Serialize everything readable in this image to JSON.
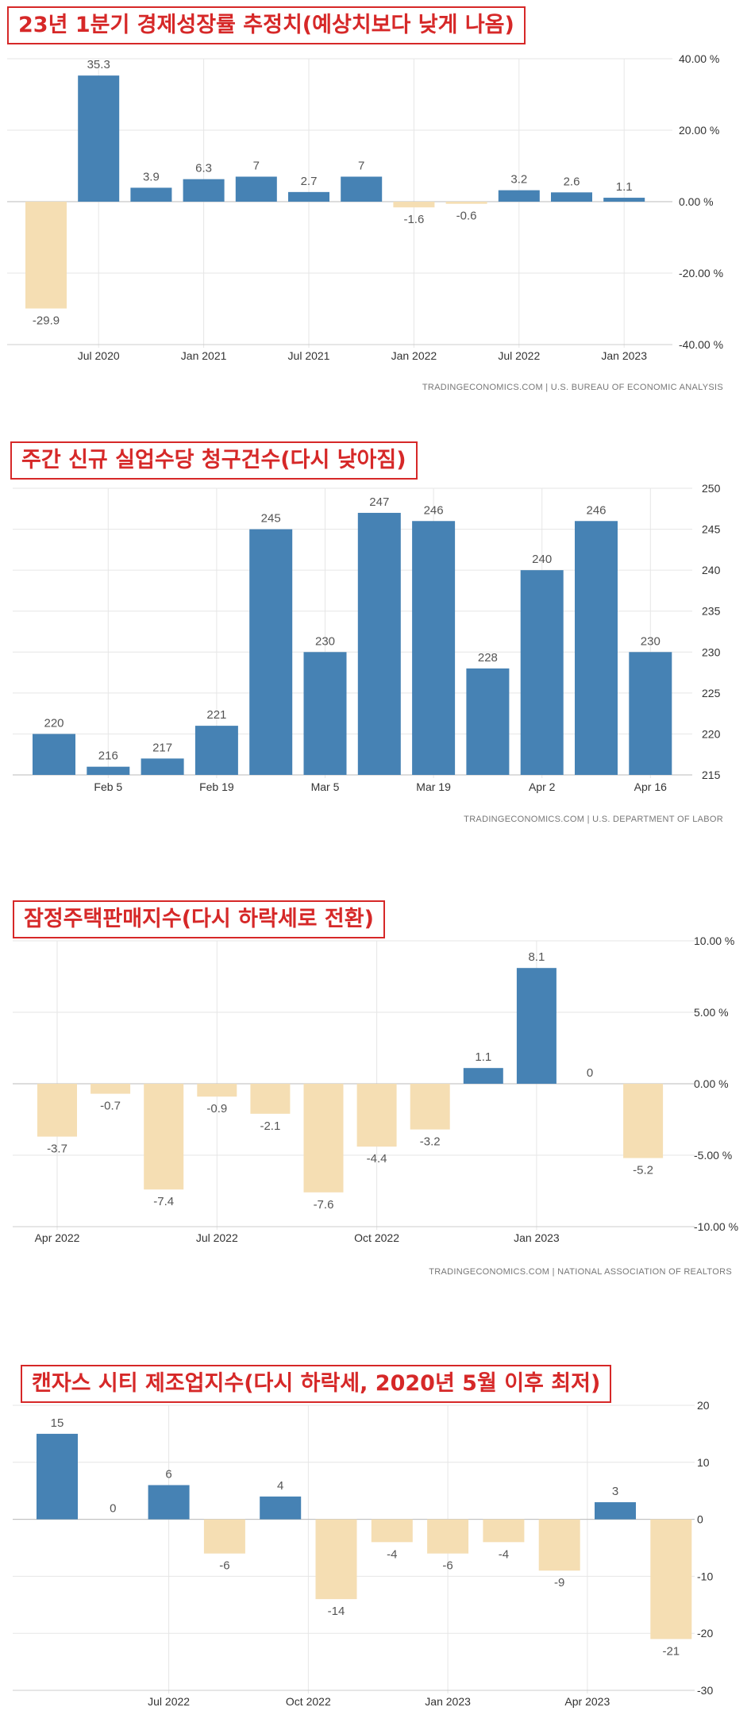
{
  "chart_data": [
    {
      "type": "bar",
      "title": "23년 1분기 경제성장률 추정치(예상치보다 낮게 나옴)",
      "x": [
        "2020 Q2",
        "2020 Q3",
        "2020 Q4",
        "2021 Q1",
        "2021 Q2",
        "2021 Q3",
        "2021 Q4",
        "2022 Q1",
        "2022 Q2",
        "2022 Q3",
        "2022 Q4",
        "2023 Q1"
      ],
      "values": [
        -29.9,
        35.3,
        3.9,
        6.3,
        7,
        2.7,
        7,
        -1.6,
        -0.6,
        3.2,
        2.6,
        1.1
      ],
      "value_labels": [
        "-29.9",
        "35.3",
        "3.9",
        "6.3",
        "7",
        "2.7",
        "7",
        "-1.6",
        "-0.6",
        "3.2",
        "2.6",
        "1.1"
      ],
      "xtick_labels": [
        "Jul 2020",
        "Jan 2021",
        "Jul 2021",
        "Jan 2022",
        "Jul 2022",
        "Jan 2023"
      ],
      "ytick_labels": [
        "40.00 %",
        "20.00 %",
        "0.00 %",
        "-20.00 %",
        "-40.00 %"
      ],
      "ylim": [
        -40,
        40
      ],
      "source": "TRADINGECONOMICS.COM  |  U.S. BUREAU OF ECONOMIC ANALYSIS",
      "colors": {
        "positive": "#4682b4",
        "negative": "#f5deb3"
      }
    },
    {
      "type": "bar",
      "title": "주간 신규 실업수당 청구건수(다시 낮아짐)",
      "x": [
        "Jan 29",
        "Feb 5",
        "Feb 12",
        "Feb 19",
        "Feb 26",
        "Mar 5",
        "Mar 12",
        "Mar 19",
        "Mar 26",
        "Apr 2",
        "Apr 9",
        "Apr 16"
      ],
      "values": [
        220,
        216,
        217,
        221,
        245,
        230,
        247,
        246,
        228,
        240,
        246,
        230
      ],
      "value_labels": [
        "220",
        "216",
        "217",
        "221",
        "245",
        "230",
        "247",
        "246",
        "228",
        "240",
        "246",
        "230"
      ],
      "xtick_labels": [
        "Feb 5",
        "Feb 19",
        "Mar 5",
        "Mar 19",
        "Apr 2",
        "Apr 16"
      ],
      "ytick_labels": [
        "250",
        "245",
        "240",
        "235",
        "230",
        "225",
        "220",
        "215"
      ],
      "ylim": [
        215,
        250
      ],
      "source": "TRADINGECONOMICS.COM  |  U.S. DEPARTMENT OF LABOR",
      "colors": {
        "positive": "#4682b4"
      }
    },
    {
      "type": "bar",
      "title": "잠정주택판매지수(다시 하락세로 전환)",
      "x": [
        "Apr 2022",
        "May 2022",
        "Jun 2022",
        "Jul 2022",
        "Aug 2022",
        "Sep 2022",
        "Oct 2022",
        "Nov 2022",
        "Dec 2022",
        "Jan 2023",
        "Feb 2023",
        "Mar 2023"
      ],
      "values": [
        -3.7,
        -0.7,
        -7.4,
        -0.9,
        -2.1,
        -7.6,
        -4.4,
        -3.2,
        1.1,
        8.1,
        0,
        -5.2
      ],
      "value_labels": [
        "-3.7",
        "-0.7",
        "-7.4",
        "-0.9",
        "-2.1",
        "-7.6",
        "-4.4",
        "-3.2",
        "1.1",
        "8.1",
        "0",
        "-5.2"
      ],
      "xtick_labels": [
        "Apr 2022",
        "Jul 2022",
        "Oct 2022",
        "Jan 2023"
      ],
      "ytick_labels": [
        "10.00 %",
        "5.00 %",
        "0.00 %",
        "-5.00 %",
        "-10.00 %"
      ],
      "ylim": [
        -10,
        10
      ],
      "source": "TRADINGECONOMICS.COM  |  NATIONAL ASSOCIATION OF REALTORS",
      "colors": {
        "positive": "#4682b4",
        "negative": "#f5deb3"
      }
    },
    {
      "type": "bar",
      "title": "캔자스 시티 제조업지수(다시 하락세, 2020년 5월 이후 최저)",
      "x": [
        "May 2022",
        "Jun 2022",
        "Jul 2022",
        "Aug 2022",
        "Sep 2022",
        "Oct 2022",
        "Nov 2022",
        "Dec 2022",
        "Jan 2023",
        "Feb 2023",
        "Mar 2023",
        "Apr 2023"
      ],
      "values": [
        15,
        0,
        6,
        -6,
        4,
        -14,
        -4,
        -6,
        -4,
        -9,
        3,
        -21
      ],
      "value_labels": [
        "15",
        "0",
        "6",
        "-6",
        "4",
        "-14",
        "-4",
        "-6",
        "-4",
        "-9",
        "3",
        "-21"
      ],
      "xtick_labels": [
        "Jul 2022",
        "Oct 2022",
        "Jan 2023",
        "Apr 2023"
      ],
      "ytick_labels": [
        "20",
        "10",
        "0",
        "-10",
        "-20",
        "-30"
      ],
      "ylim": [
        -30,
        20
      ],
      "source": "",
      "colors": {
        "positive": "#4682b4",
        "negative": "#f5deb3"
      }
    }
  ]
}
